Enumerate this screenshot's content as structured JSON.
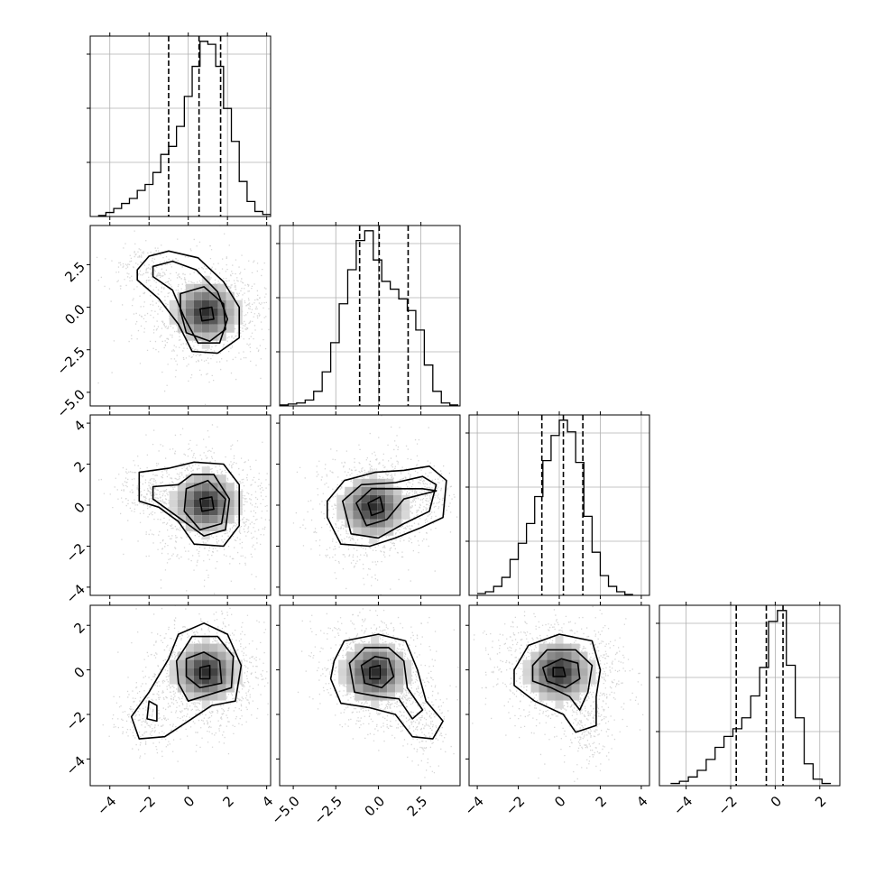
{
  "chart_data": {
    "type": "corner",
    "grid": true,
    "parameters": [
      {
        "range": [
          -5,
          4.2
        ],
        "ticks": [
          -4,
          -2,
          0,
          2,
          4
        ],
        "tick_labels": [
          "−4",
          "−2",
          "0",
          "2",
          "4"
        ]
      },
      {
        "range": [
          -5.8,
          4.8
        ],
        "ticks": [
          -5.0,
          -2.5,
          0.0,
          2.5
        ],
        "tick_labels": [
          "−5.0",
          "−2.5",
          "0.0",
          "2.5"
        ]
      },
      {
        "range": [
          -4.4,
          4.4
        ],
        "ticks": [
          -4,
          -2,
          0,
          2,
          4
        ],
        "tick_labels": [
          "−4",
          "−2",
          "0",
          "2",
          "4"
        ]
      },
      {
        "range": [
          -5.2,
          2.9
        ],
        "ticks": [
          -4,
          -2,
          0,
          2
        ],
        "tick_labels": [
          "−4",
          "−2",
          "0",
          "2"
        ]
      }
    ],
    "marginals": [
      {
        "param": 0,
        "quantiles": [
          -1.0,
          0.55,
          1.65
        ],
        "bin_edges": [
          -4.6,
          -4.2,
          -3.8,
          -3.4,
          -3.0,
          -2.6,
          -2.2,
          -1.8,
          -1.4,
          -1.0,
          -0.6,
          -0.2,
          0.2,
          0.6,
          1.0,
          1.4,
          1.8,
          2.2,
          2.6,
          3.0,
          3.4,
          3.8,
          4.2
        ],
        "counts": [
          1,
          4,
          8,
          13,
          18,
          26,
          32,
          44,
          62,
          70,
          90,
          120,
          150,
          175,
          172,
          150,
          108,
          75,
          35,
          15,
          5,
          2
        ]
      },
      {
        "param": 1,
        "quantiles": [
          -1.1,
          0.05,
          1.75
        ],
        "bin_edges": [
          -5.8,
          -5.3,
          -4.8,
          -4.3,
          -3.8,
          -3.3,
          -2.8,
          -2.3,
          -1.8,
          -1.3,
          -0.8,
          -0.3,
          0.2,
          0.7,
          1.2,
          1.7,
          2.2,
          2.7,
          3.2,
          3.7,
          4.2,
          4.7
        ],
        "counts": [
          1,
          2,
          3,
          6,
          15,
          35,
          65,
          105,
          140,
          170,
          180,
          150,
          128,
          120,
          110,
          98,
          78,
          42,
          15,
          3,
          1
        ]
      },
      {
        "param": 2,
        "quantiles": [
          -0.85,
          0.2,
          1.15
        ],
        "bin_edges": [
          -4.0,
          -3.6,
          -3.2,
          -2.8,
          -2.4,
          -2.0,
          -1.6,
          -1.2,
          -0.8,
          -0.4,
          0.0,
          0.4,
          0.8,
          1.2,
          1.6,
          2.0,
          2.4,
          2.8,
          3.2,
          3.6
        ],
        "counts": [
          2,
          4,
          10,
          20,
          40,
          58,
          80,
          110,
          150,
          178,
          195,
          182,
          148,
          88,
          48,
          22,
          10,
          4,
          1
        ]
      },
      {
        "param": 3,
        "quantiles": [
          -1.75,
          -0.4,
          0.35
        ],
        "bin_edges": [
          -4.7,
          -4.3,
          -3.9,
          -3.5,
          -3.1,
          -2.7,
          -2.3,
          -1.9,
          -1.5,
          -1.1,
          -0.7,
          -0.3,
          0.1,
          0.5,
          0.9,
          1.3,
          1.7,
          2.1,
          2.5
        ],
        "counts": [
          2,
          4,
          8,
          14,
          24,
          35,
          45,
          52,
          62,
          82,
          108,
          150,
          160,
          110,
          62,
          20,
          6,
          2
        ]
      }
    ],
    "joints": [
      {
        "x_param": 0,
        "y_param": 1,
        "peak": [
          0.9,
          -0.3
        ]
      },
      {
        "x_param": 0,
        "y_param": 2,
        "peak": [
          0.9,
          0.1
        ]
      },
      {
        "x_param": 1,
        "y_param": 2,
        "peak": [
          -0.3,
          -0.1
        ]
      },
      {
        "x_param": 0,
        "y_param": 3,
        "peak": [
          0.9,
          -0.1
        ]
      },
      {
        "x_param": 1,
        "y_param": 3,
        "peak": [
          -0.2,
          -0.1
        ]
      },
      {
        "x_param": 2,
        "y_param": 3,
        "peak": [
          0.0,
          -0.1
        ]
      }
    ]
  }
}
